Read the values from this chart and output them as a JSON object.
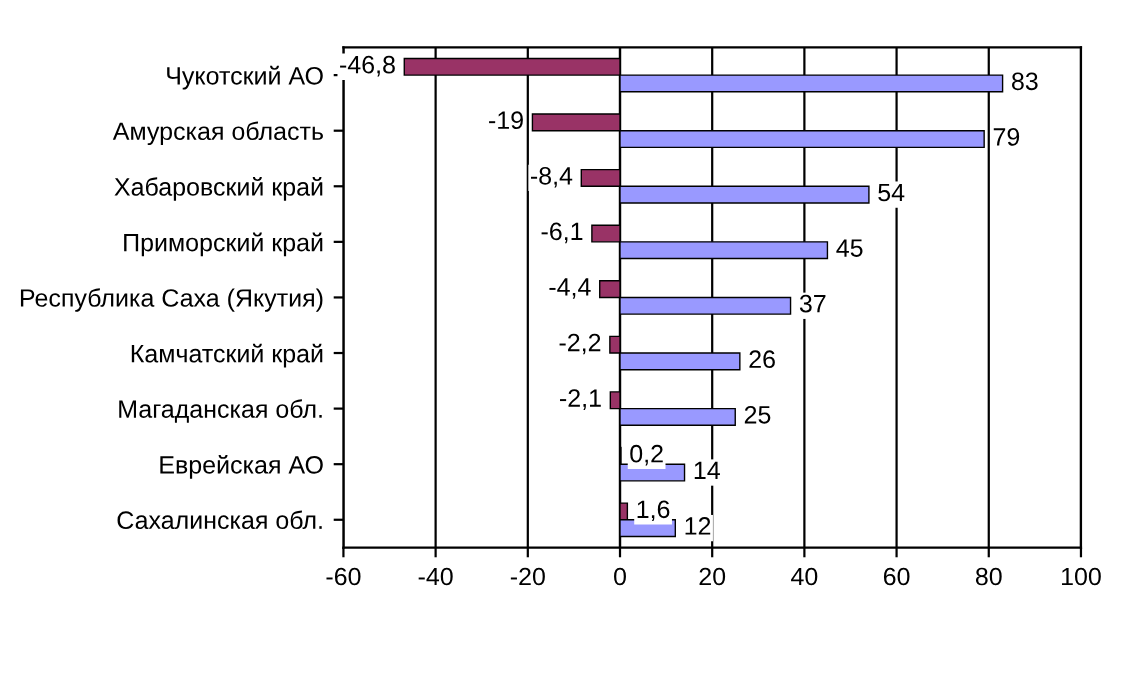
{
  "chart_data": {
    "type": "bar",
    "orientation": "horizontal",
    "categories": [
      "Чукотский АО",
      "Амурская область",
      "Хабаровский край",
      "Приморский край",
      "Республика Саха (Якутия)",
      "Камчатский край",
      "Магаданская обл.",
      "Еврейская АО",
      "Сахалинская обл."
    ],
    "series": [
      {
        "color": "#993366",
        "values": [
          -46.8,
          -19,
          -8.4,
          -6.1,
          -4.4,
          -2.2,
          -2.1,
          0.2,
          1.6
        ],
        "value_labels": [
          "-46,8",
          "-19",
          "-8,4",
          "-6,1",
          "-4,4",
          "-2,2",
          "-2,1",
          "0,2",
          "1,6"
        ]
      },
      {
        "color": "#9999ff",
        "values": [
          83,
          79,
          54,
          45,
          37,
          26,
          25,
          14,
          12
        ],
        "value_labels": [
          "83",
          "79",
          "54",
          "45",
          "37",
          "26",
          "25",
          "14",
          "12"
        ]
      }
    ],
    "xlim": [
      -60,
      100
    ],
    "xticks": [
      -60,
      -40,
      -20,
      0,
      20,
      40,
      60,
      80,
      100
    ],
    "grid": "x",
    "legend": false
  }
}
